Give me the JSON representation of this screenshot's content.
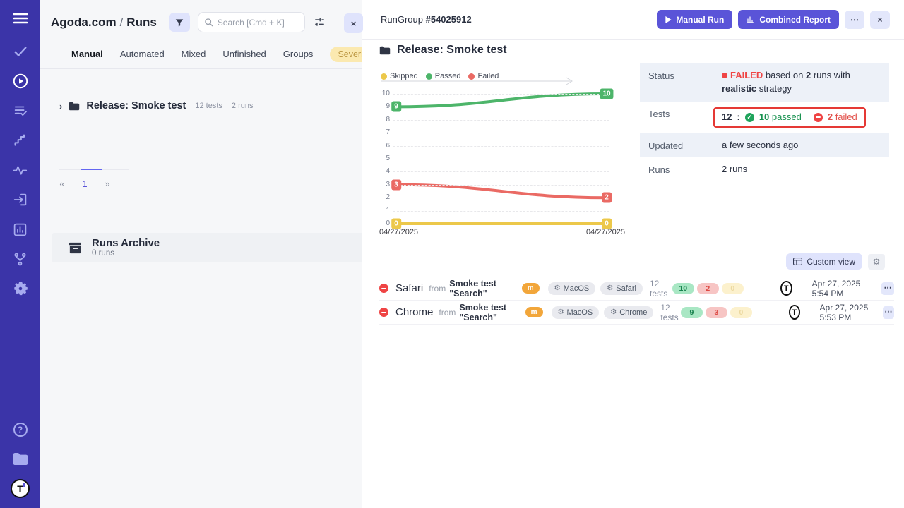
{
  "colors": {
    "accent": "#5a54d8",
    "sidebar_bg": "#3b34a8",
    "failed_red": "#ef4444",
    "passed_green": "#17914f",
    "skipped_yellow": "#ecc84a",
    "annotation_red": "#e53935"
  },
  "sidebar": {
    "icons": [
      "menu",
      "tests-check",
      "runs-play",
      "test-plans",
      "milestones",
      "activity",
      "import",
      "analytics",
      "branches",
      "settings",
      "help",
      "documents",
      "logo"
    ],
    "active_icon": "runs-play",
    "logo_letter": "T"
  },
  "left_panel": {
    "breadcrumb": {
      "project": "Agoda.com",
      "separator": "/",
      "page": "Runs"
    },
    "search_placeholder": "Search [Cmd + K]",
    "tabs": [
      "Manual",
      "Automated",
      "Mixed",
      "Unfinished",
      "Groups"
    ],
    "severity_tab": "Severity",
    "tree_item": {
      "name": "Release: Smoke test",
      "tests": "12 tests",
      "runs": "2 runs"
    },
    "pagination": {
      "prev": "«",
      "current": "1",
      "next": "»"
    },
    "archive": {
      "title": "Runs Archive",
      "count": "0 runs"
    },
    "close": "×"
  },
  "run_group": {
    "label": "RunGroup",
    "id": "#54025912",
    "manual_run": "Manual Run",
    "combined_report": "Combined Report",
    "more": "⋯",
    "close": "×"
  },
  "detail": {
    "heading": "Release: Smoke test",
    "info": {
      "status_label": "Status",
      "status_failed": "FAILED",
      "status_text_1": "based on",
      "status_runs_count": "2",
      "status_text_2": "runs with",
      "status_strategy": "realistic",
      "status_text_3": "strategy",
      "tests_label": "Tests",
      "tests_total": "12",
      "tests_colon": ":",
      "tests_passed": "10",
      "tests_passed_word": "passed",
      "tests_failed": "2",
      "tests_failed_word": "failed",
      "updated_label": "Updated",
      "updated_value": "a few seconds ago",
      "runs_label": "Runs",
      "runs_value": "2 runs"
    },
    "custom_view": "Custom view"
  },
  "runs": [
    {
      "browser": "Safari",
      "from": "from",
      "source": "Smoke test \"Search\"",
      "badge": "m",
      "env_os": "MacOS",
      "env_browser": "Safari",
      "tests": "12 tests",
      "passed": "10",
      "failed": "2",
      "skipped": "0",
      "date": "Apr 27, 2025 5:54 PM",
      "more": "⋯"
    },
    {
      "browser": "Chrome",
      "from": "from",
      "source": "Smoke test \"Search\"",
      "badge": "m",
      "env_os": "MacOS",
      "env_browser": "Chrome",
      "tests": "12 tests",
      "passed": "9",
      "failed": "3",
      "skipped": "0",
      "date": "Apr 27, 2025 5:53 PM",
      "more": "⋯"
    }
  ],
  "chart_data": {
    "type": "line",
    "x": [
      "04/27/2025",
      "04/27/2025"
    ],
    "series": [
      {
        "name": "Skipped",
        "color": "#ecc84a",
        "values": [
          0,
          0
        ]
      },
      {
        "name": "Passed",
        "color": "#4db56a",
        "values": [
          9,
          10
        ]
      },
      {
        "name": "Failed",
        "color": "#ea6a64",
        "values": [
          3,
          2
        ]
      }
    ],
    "ylim": [
      0,
      10
    ],
    "yticks": [
      0,
      1,
      2,
      3,
      4,
      5,
      6,
      7,
      8,
      9,
      10
    ],
    "grid": true,
    "legend_position": "top-left",
    "point_labels": true
  }
}
